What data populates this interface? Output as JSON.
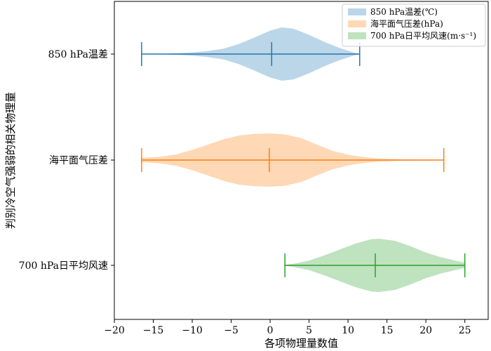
{
  "chart_data": {
    "type": "violin",
    "orientation": "horizontal",
    "xlabel": "各项物理量数值",
    "ylabel": "判别冷空气强弱的相关物理量",
    "xlim": [
      -20,
      28
    ],
    "xticks": [
      -20,
      -15,
      -10,
      -5,
      0,
      5,
      10,
      15,
      20,
      25
    ],
    "grid": false,
    "legend_position": "top-right",
    "series": [
      {
        "category": "850 hPa温差",
        "legend": "850 hPa温差(℃)",
        "color": "#1f77b4",
        "min": -16.5,
        "max": 11.5,
        "mean": 0.2,
        "density": [
          [
            -16.5,
            0.0
          ],
          [
            -14,
            0.01
          ],
          [
            -12,
            0.03
          ],
          [
            -10,
            0.06
          ],
          [
            -8,
            0.11
          ],
          [
            -6,
            0.2
          ],
          [
            -4,
            0.38
          ],
          [
            -2,
            0.62
          ],
          [
            0,
            0.88
          ],
          [
            1.5,
            1.0
          ],
          [
            3,
            0.95
          ],
          [
            5,
            0.72
          ],
          [
            7,
            0.45
          ],
          [
            9,
            0.22
          ],
          [
            10.5,
            0.08
          ],
          [
            11.5,
            0.0
          ]
        ]
      },
      {
        "category": "海平面气压差",
        "legend": "海平面气压差(hPa)",
        "color": "#ff7f0e",
        "min": -16.5,
        "max": 22.3,
        "mean": -0.1,
        "density": [
          [
            -16.5,
            0.08
          ],
          [
            -14,
            0.13
          ],
          [
            -12,
            0.22
          ],
          [
            -10,
            0.38
          ],
          [
            -8,
            0.58
          ],
          [
            -6,
            0.78
          ],
          [
            -4,
            0.92
          ],
          [
            -2,
            0.98
          ],
          [
            0,
            1.0
          ],
          [
            2,
            0.96
          ],
          [
            4,
            0.82
          ],
          [
            6,
            0.58
          ],
          [
            8,
            0.35
          ],
          [
            10,
            0.2
          ],
          [
            12,
            0.11
          ],
          [
            14,
            0.06
          ],
          [
            17,
            0.03
          ],
          [
            20,
            0.015
          ],
          [
            22.3,
            0.01
          ]
        ]
      },
      {
        "category": "700 hPa日平均风速",
        "legend": "700 hPa日平均风速(m·s⁻¹)",
        "color": "#2ca02c",
        "min": 1.9,
        "max": 25.0,
        "mean": 13.5,
        "density": [
          [
            1.9,
            0.02
          ],
          [
            3,
            0.06
          ],
          [
            5,
            0.18
          ],
          [
            7,
            0.38
          ],
          [
            9,
            0.6
          ],
          [
            11,
            0.82
          ],
          [
            13,
            0.98
          ],
          [
            14,
            1.0
          ],
          [
            16,
            0.92
          ],
          [
            18,
            0.72
          ],
          [
            20,
            0.48
          ],
          [
            22,
            0.3
          ],
          [
            24,
            0.16
          ],
          [
            25,
            0.1
          ]
        ]
      }
    ]
  }
}
